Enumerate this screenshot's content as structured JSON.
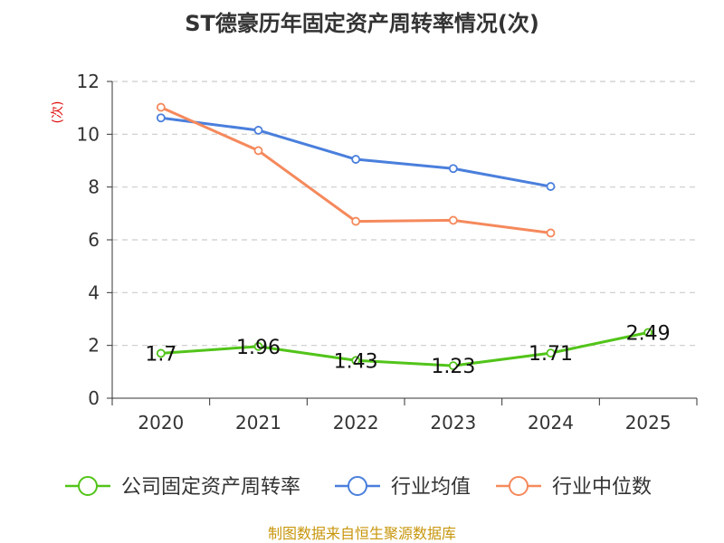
{
  "chart_data": {
    "type": "line",
    "title": "ST德豪历年固定资产周转率情况(次)",
    "ylabel": "(次)",
    "xlabel": "",
    "categories": [
      "2020",
      "2021",
      "2022",
      "2023",
      "2024",
      "2025"
    ],
    "ylim": [
      0,
      12
    ],
    "yticks": [
      0,
      2,
      4,
      6,
      8,
      10,
      12
    ],
    "grid": true,
    "legend_position": "bottom",
    "series": [
      {
        "name": "公司固定资产周转率",
        "color": "#52c41a",
        "values": [
          1.7,
          1.96,
          1.43,
          1.23,
          1.71,
          2.49
        ],
        "labels": [
          "1.7",
          "1.96",
          "1.43",
          "1.23",
          "1.71",
          "2.49"
        ]
      },
      {
        "name": "行业均值",
        "color": "#4a7fdc",
        "values": [
          10.62,
          10.15,
          9.05,
          8.7,
          8.02,
          null
        ]
      },
      {
        "name": "行业中位数",
        "color": "#f5895c",
        "values": [
          11.02,
          9.38,
          6.7,
          6.74,
          6.26,
          null
        ]
      }
    ],
    "source": "制图数据来自恒生聚源数据库"
  }
}
